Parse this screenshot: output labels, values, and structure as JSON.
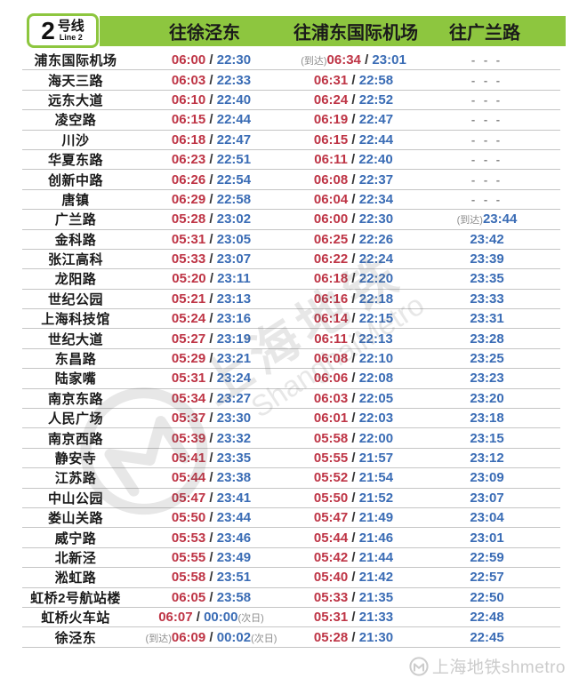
{
  "line_badge": {
    "number": "2",
    "name_cn": "号线",
    "name_en": "Line 2"
  },
  "directions": [
    {
      "label": "往徐泾东"
    },
    {
      "label": "往浦东国际机场"
    },
    {
      "label": "往广兰路"
    }
  ],
  "colors": {
    "line_green": "#8DC63F",
    "first_train_red": "#BE3445",
    "last_train_blue": "#3A6CB5",
    "note_gray": "#8E8E8E"
  },
  "notes": {
    "arrival": "(到达)",
    "next_day": "(次日)",
    "no_service": "- - -"
  },
  "watermark": {
    "text_cn": "上海地铁",
    "text_en": "ShanghaiMetro"
  },
  "footer": {
    "brand": "上海地铁shmetro"
  },
  "table": {
    "rows": [
      {
        "station": "浦东国际机场",
        "to_xujingdong": {
          "first": "06:00",
          "last": "22:30"
        },
        "to_pudong_airport": {
          "note_before": "(到达)",
          "first": "06:34",
          "last": "23:01"
        },
        "to_guanglanlu": {
          "dashes": true
        }
      },
      {
        "station": "海天三路",
        "to_xujingdong": {
          "first": "06:03",
          "last": "22:33"
        },
        "to_pudong_airport": {
          "first": "06:31",
          "last": "22:58"
        },
        "to_guanglanlu": {
          "dashes": true
        }
      },
      {
        "station": "远东大道",
        "to_xujingdong": {
          "first": "06:10",
          "last": "22:40"
        },
        "to_pudong_airport": {
          "first": "06:24",
          "last": "22:52"
        },
        "to_guanglanlu": {
          "dashes": true
        }
      },
      {
        "station": "凌空路",
        "to_xujingdong": {
          "first": "06:15",
          "last": "22:44"
        },
        "to_pudong_airport": {
          "first": "06:19",
          "last": "22:47"
        },
        "to_guanglanlu": {
          "dashes": true
        }
      },
      {
        "station": "川沙",
        "to_xujingdong": {
          "first": "06:18",
          "last": "22:47"
        },
        "to_pudong_airport": {
          "first": "06:15",
          "last": "22:44"
        },
        "to_guanglanlu": {
          "dashes": true
        }
      },
      {
        "station": "华夏东路",
        "to_xujingdong": {
          "first": "06:23",
          "last": "22:51"
        },
        "to_pudong_airport": {
          "first": "06:11",
          "last": "22:40"
        },
        "to_guanglanlu": {
          "dashes": true
        }
      },
      {
        "station": "创新中路",
        "to_xujingdong": {
          "first": "06:26",
          "last": "22:54"
        },
        "to_pudong_airport": {
          "first": "06:08",
          "last": "22:37"
        },
        "to_guanglanlu": {
          "dashes": true
        }
      },
      {
        "station": "唐镇",
        "to_xujingdong": {
          "first": "06:29",
          "last": "22:58"
        },
        "to_pudong_airport": {
          "first": "06:04",
          "last": "22:34"
        },
        "to_guanglanlu": {
          "dashes": true
        }
      },
      {
        "station": "广兰路",
        "to_xujingdong": {
          "first": "05:28",
          "last": "23:02"
        },
        "to_pudong_airport": {
          "first": "06:00",
          "last": "22:30"
        },
        "to_guanglanlu": {
          "note_before": "(到达)",
          "last": "23:44"
        }
      },
      {
        "station": "金科路",
        "to_xujingdong": {
          "first": "05:31",
          "last": "23:05"
        },
        "to_pudong_airport": {
          "first": "06:25",
          "last": "22:26"
        },
        "to_guanglanlu": {
          "last": "23:42"
        }
      },
      {
        "station": "张江高科",
        "to_xujingdong": {
          "first": "05:33",
          "last": "23:07"
        },
        "to_pudong_airport": {
          "first": "06:22",
          "last": "22:24"
        },
        "to_guanglanlu": {
          "last": "23:39"
        }
      },
      {
        "station": "龙阳路",
        "to_xujingdong": {
          "first": "05:20",
          "last": "23:11"
        },
        "to_pudong_airport": {
          "first": "06:18",
          "last": "22:20"
        },
        "to_guanglanlu": {
          "last": "23:35"
        }
      },
      {
        "station": "世纪公园",
        "to_xujingdong": {
          "first": "05:21",
          "last": "23:13"
        },
        "to_pudong_airport": {
          "first": "06:16",
          "last": "22:18"
        },
        "to_guanglanlu": {
          "last": "23:33"
        }
      },
      {
        "station": "上海科技馆",
        "to_xujingdong": {
          "first": "05:24",
          "last": "23:16"
        },
        "to_pudong_airport": {
          "first": "06:14",
          "last": "22:15"
        },
        "to_guanglanlu": {
          "last": "23:31"
        }
      },
      {
        "station": "世纪大道",
        "to_xujingdong": {
          "first": "05:27",
          "last": "23:19"
        },
        "to_pudong_airport": {
          "first": "06:11",
          "last": "22:13"
        },
        "to_guanglanlu": {
          "last": "23:28"
        }
      },
      {
        "station": "东昌路",
        "to_xujingdong": {
          "first": "05:29",
          "last": "23:21"
        },
        "to_pudong_airport": {
          "first": "06:08",
          "last": "22:10"
        },
        "to_guanglanlu": {
          "last": "23:25"
        }
      },
      {
        "station": "陆家嘴",
        "to_xujingdong": {
          "first": "05:31",
          "last": "23:24"
        },
        "to_pudong_airport": {
          "first": "06:06",
          "last": "22:08"
        },
        "to_guanglanlu": {
          "last": "23:23"
        }
      },
      {
        "station": "南京东路",
        "to_xujingdong": {
          "first": "05:34",
          "last": "23:27"
        },
        "to_pudong_airport": {
          "first": "06:03",
          "last": "22:05"
        },
        "to_guanglanlu": {
          "last": "23:20"
        }
      },
      {
        "station": "人民广场",
        "to_xujingdong": {
          "first": "05:37",
          "last": "23:30"
        },
        "to_pudong_airport": {
          "first": "06:01",
          "last": "22:03"
        },
        "to_guanglanlu": {
          "last": "23:18"
        }
      },
      {
        "station": "南京西路",
        "to_xujingdong": {
          "first": "05:39",
          "last": "23:32"
        },
        "to_pudong_airport": {
          "first": "05:58",
          "last": "22:00"
        },
        "to_guanglanlu": {
          "last": "23:15"
        }
      },
      {
        "station": "静安寺",
        "to_xujingdong": {
          "first": "05:41",
          "last": "23:35"
        },
        "to_pudong_airport": {
          "first": "05:55",
          "last": "21:57"
        },
        "to_guanglanlu": {
          "last": "23:12"
        }
      },
      {
        "station": "江苏路",
        "to_xujingdong": {
          "first": "05:44",
          "last": "23:38"
        },
        "to_pudong_airport": {
          "first": "05:52",
          "last": "21:54"
        },
        "to_guanglanlu": {
          "last": "23:09"
        }
      },
      {
        "station": "中山公园",
        "to_xujingdong": {
          "first": "05:47",
          "last": "23:41"
        },
        "to_pudong_airport": {
          "first": "05:50",
          "last": "21:52"
        },
        "to_guanglanlu": {
          "last": "23:07"
        }
      },
      {
        "station": "娄山关路",
        "to_xujingdong": {
          "first": "05:50",
          "last": "23:44"
        },
        "to_pudong_airport": {
          "first": "05:47",
          "last": "21:49"
        },
        "to_guanglanlu": {
          "last": "23:04"
        }
      },
      {
        "station": "威宁路",
        "to_xujingdong": {
          "first": "05:53",
          "last": "23:46"
        },
        "to_pudong_airport": {
          "first": "05:44",
          "last": "21:46"
        },
        "to_guanglanlu": {
          "last": "23:01"
        }
      },
      {
        "station": "北新泾",
        "to_xujingdong": {
          "first": "05:55",
          "last": "23:49"
        },
        "to_pudong_airport": {
          "first": "05:42",
          "last": "21:44"
        },
        "to_guanglanlu": {
          "last": "22:59"
        }
      },
      {
        "station": "淞虹路",
        "to_xujingdong": {
          "first": "05:58",
          "last": "23:51"
        },
        "to_pudong_airport": {
          "first": "05:40",
          "last": "21:42"
        },
        "to_guanglanlu": {
          "last": "22:57"
        }
      },
      {
        "station": "虹桥2号航站楼",
        "to_xujingdong": {
          "first": "06:05",
          "last": "23:58"
        },
        "to_pudong_airport": {
          "first": "05:33",
          "last": "21:35"
        },
        "to_guanglanlu": {
          "last": "22:50"
        }
      },
      {
        "station": "虹桥火车站",
        "to_xujingdong": {
          "first": "06:07",
          "last": "00:00",
          "note_after": "(次日)"
        },
        "to_pudong_airport": {
          "first": "05:31",
          "last": "21:33"
        },
        "to_guanglanlu": {
          "last": "22:48"
        }
      },
      {
        "station": "徐泾东",
        "to_xujingdong": {
          "note_before": "(到达)",
          "first": "06:09",
          "last": "00:02",
          "note_after": "(次日)"
        },
        "to_pudong_airport": {
          "first": "05:28",
          "last": "21:30"
        },
        "to_guanglanlu": {
          "last": "22:45"
        }
      }
    ]
  }
}
